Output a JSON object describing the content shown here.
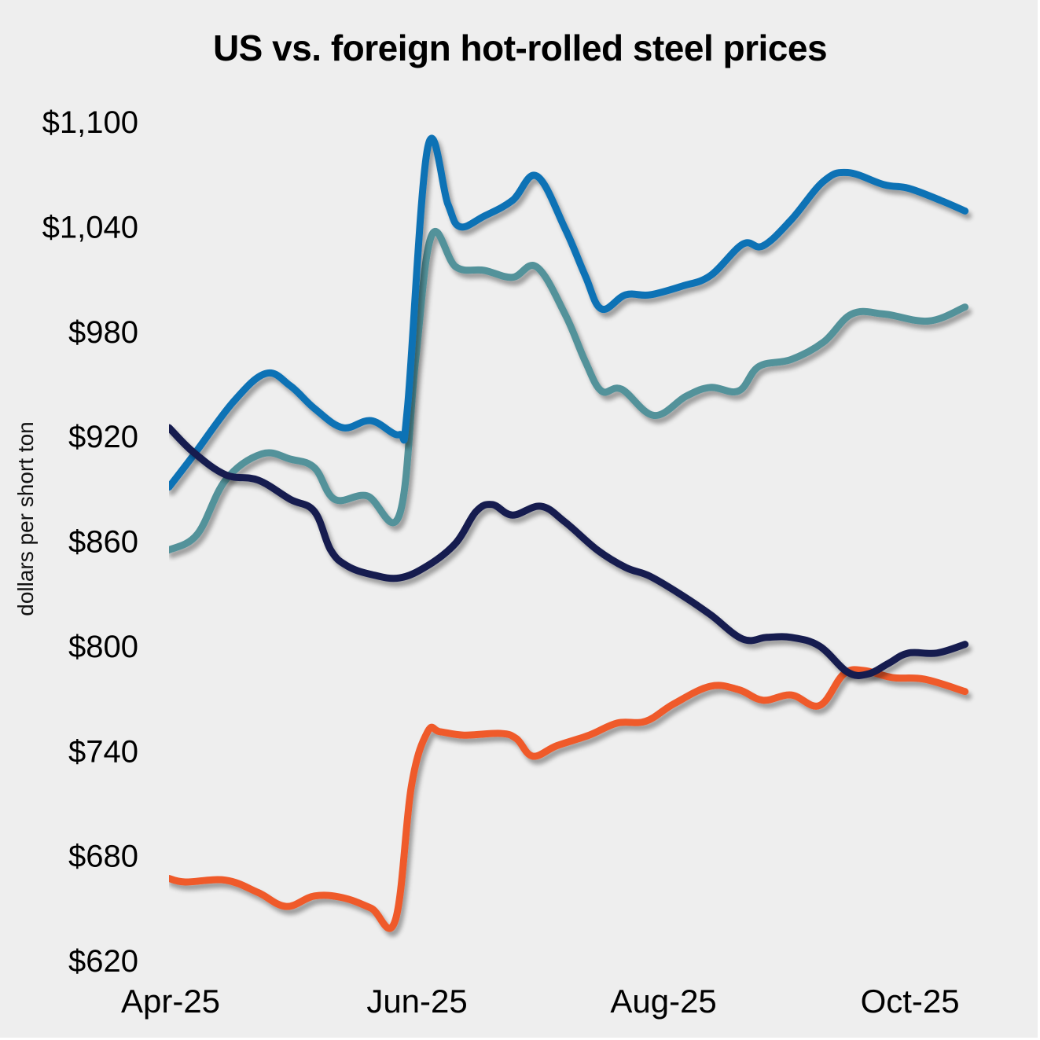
{
  "chart_data": {
    "type": "line",
    "title": "US vs. foreign hot-rolled steel prices",
    "xlabel": "",
    "ylabel": "dollars per short ton",
    "ylim": [
      620,
      1100
    ],
    "yticks": [
      1100,
      1040,
      980,
      920,
      860,
      800,
      740,
      680,
      620
    ],
    "ytick_labels": [
      "$1,100",
      "$1,040",
      "$980",
      "$920",
      "$860",
      "$800",
      "$740",
      "$680",
      "$620"
    ],
    "x_unit": "days since 2025-04-01",
    "xlim": [
      0,
      198
    ],
    "xticks": [
      0,
      61,
      122,
      183
    ],
    "xtick_labels": [
      "Apr-25",
      "Jun-25",
      "Aug-25",
      "Oct-25"
    ],
    "grid": false,
    "legend": "none",
    "series": [
      {
        "name": "series-1",
        "color": "#1172b5",
        "points": [
          [
            0,
            891
          ],
          [
            6,
            909
          ],
          [
            16,
            940
          ],
          [
            24,
            956
          ],
          [
            30,
            949
          ],
          [
            36,
            936
          ],
          [
            43,
            925
          ],
          [
            50,
            929
          ],
          [
            57,
            921
          ],
          [
            59,
            936
          ],
          [
            64,
            1085
          ],
          [
            69,
            1053
          ],
          [
            72,
            1040
          ],
          [
            78,
            1046
          ],
          [
            85,
            1055
          ],
          [
            91,
            1069
          ],
          [
            98,
            1039
          ],
          [
            103,
            1012
          ],
          [
            107,
            993
          ],
          [
            113,
            1001
          ],
          [
            119,
            1001
          ],
          [
            127,
            1006
          ],
          [
            134,
            1012
          ],
          [
            142,
            1030
          ],
          [
            147,
            1029
          ],
          [
            154,
            1044
          ],
          [
            162,
            1066
          ],
          [
            168,
            1071
          ],
          [
            177,
            1064
          ],
          [
            183,
            1062
          ],
          [
            191,
            1055
          ],
          [
            197,
            1049
          ]
        ]
      },
      {
        "name": "series-2",
        "color": "#53929a",
        "points": [
          [
            0,
            855
          ],
          [
            7,
            864
          ],
          [
            14,
            895
          ],
          [
            23,
            910
          ],
          [
            30,
            907
          ],
          [
            36,
            902
          ],
          [
            41,
            884
          ],
          [
            49,
            886
          ],
          [
            57,
            875
          ],
          [
            61,
            963
          ],
          [
            65,
            1035
          ],
          [
            71,
            1017
          ],
          [
            78,
            1015
          ],
          [
            85,
            1011
          ],
          [
            91,
            1017
          ],
          [
            98,
            990
          ],
          [
            103,
            963
          ],
          [
            107,
            946
          ],
          [
            112,
            947
          ],
          [
            120,
            932
          ],
          [
            128,
            943
          ],
          [
            134,
            948
          ],
          [
            141,
            946
          ],
          [
            146,
            960
          ],
          [
            154,
            964
          ],
          [
            162,
            974
          ],
          [
            169,
            990
          ],
          [
            177,
            990
          ],
          [
            188,
            986
          ],
          [
            197,
            994
          ]
        ]
      },
      {
        "name": "series-3",
        "color": "#151c4f",
        "points": [
          [
            0,
            925
          ],
          [
            6,
            911
          ],
          [
            14,
            898
          ],
          [
            22,
            895
          ],
          [
            30,
            884
          ],
          [
            36,
            877
          ],
          [
            40,
            855
          ],
          [
            44,
            846
          ],
          [
            50,
            841
          ],
          [
            57,
            839
          ],
          [
            64,
            846
          ],
          [
            71,
            859
          ],
          [
            76,
            877
          ],
          [
            80,
            881
          ],
          [
            85,
            875
          ],
          [
            92,
            880
          ],
          [
            98,
            871
          ],
          [
            106,
            855
          ],
          [
            113,
            845
          ],
          [
            119,
            840
          ],
          [
            127,
            829
          ],
          [
            134,
            818
          ],
          [
            142,
            804
          ],
          [
            148,
            805
          ],
          [
            154,
            805
          ],
          [
            161,
            800
          ],
          [
            168,
            785
          ],
          [
            173,
            784
          ],
          [
            178,
            790
          ],
          [
            183,
            796
          ],
          [
            190,
            796
          ],
          [
            197,
            801
          ]
        ]
      },
      {
        "name": "series-4",
        "color": "#ef5a2c",
        "points": [
          [
            0,
            667
          ],
          [
            4,
            665
          ],
          [
            14,
            666
          ],
          [
            22,
            659
          ],
          [
            29,
            651
          ],
          [
            36,
            657
          ],
          [
            43,
            656
          ],
          [
            50,
            650
          ],
          [
            56,
            643
          ],
          [
            60,
            720
          ],
          [
            64,
            751
          ],
          [
            67,
            751
          ],
          [
            73,
            749
          ],
          [
            82,
            750
          ],
          [
            86,
            747
          ],
          [
            90,
            737
          ],
          [
            96,
            743
          ],
          [
            104,
            749
          ],
          [
            111,
            756
          ],
          [
            118,
            757
          ],
          [
            125,
            767
          ],
          [
            134,
            777
          ],
          [
            141,
            775
          ],
          [
            147,
            769
          ],
          [
            154,
            772
          ],
          [
            161,
            766
          ],
          [
            167,
            784
          ],
          [
            172,
            786
          ],
          [
            179,
            782
          ],
          [
            187,
            781
          ],
          [
            197,
            774
          ]
        ]
      }
    ]
  }
}
